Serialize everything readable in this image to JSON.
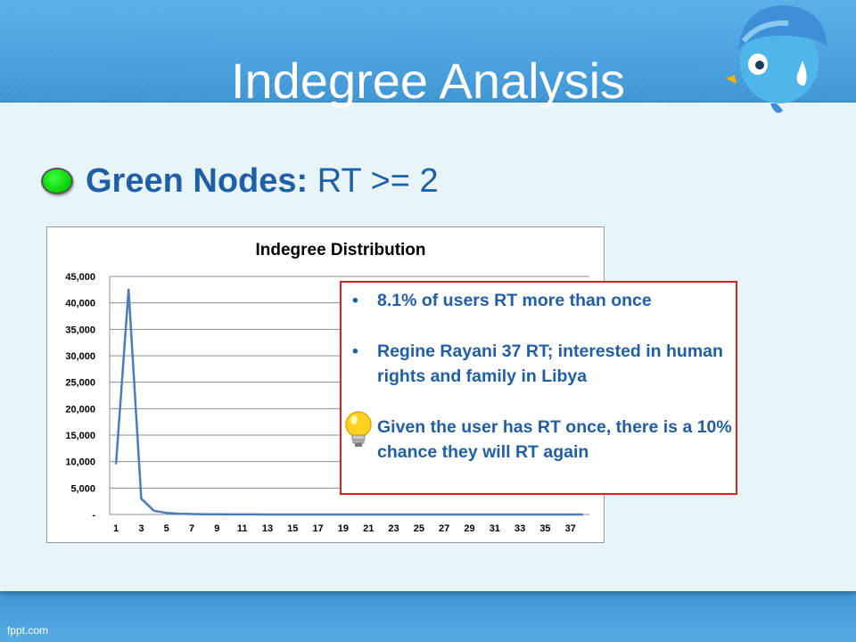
{
  "slide": {
    "title": "Indegree Analysis",
    "bullet_bold": "Green Nodes:",
    "bullet_rest": " RT >= 2",
    "footer": "fppt.com"
  },
  "callout": {
    "bullet_glyph": "•",
    "items": [
      "8.1% of users RT more than once",
      "Regine Rayani 37 RT; interested in human rights and family in Libya",
      "Given the user has RT once, there is a 10% chance they will RT again"
    ]
  },
  "chart_data": {
    "type": "line",
    "title": "Indegree Distribution",
    "x": [
      1,
      2,
      3,
      4,
      5,
      6,
      7,
      8,
      9,
      10,
      11,
      12,
      13,
      14,
      15,
      16,
      17,
      18,
      19,
      20,
      21,
      22,
      23,
      24,
      25,
      26,
      27,
      28,
      29,
      30,
      31,
      32,
      33,
      34,
      35,
      36,
      37,
      38
    ],
    "x_tick_labels": [
      "1",
      "3",
      "5",
      "7",
      "9",
      "11",
      "13",
      "15",
      "17",
      "19",
      "21",
      "23",
      "25",
      "27",
      "29",
      "31",
      "33",
      "35",
      "37"
    ],
    "series": [
      {
        "values": [
          9500,
          42500,
          3000,
          700,
          300,
          150,
          80,
          50,
          30,
          20,
          15,
          10,
          8,
          6,
          5,
          4,
          3,
          3,
          2,
          2,
          2,
          2,
          1,
          1,
          1,
          1,
          1,
          1,
          1,
          1,
          1,
          1,
          1,
          1,
          1,
          1,
          1,
          1
        ]
      }
    ],
    "ylim": [
      0,
      45000
    ],
    "y_tick_labels": [
      "-",
      "5,000",
      "10,000",
      "15,000",
      "20,000",
      "25,000",
      "30,000",
      "35,000",
      "40,000",
      "45,000"
    ],
    "grid": true,
    "line_color": "#4a7ebb"
  }
}
